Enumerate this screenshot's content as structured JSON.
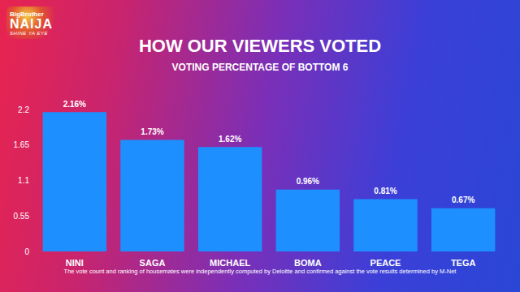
{
  "chart_data": {
    "type": "bar",
    "title": "HOW OUR VIEWERS VOTED",
    "subtitle": "VOTING PERCENTAGE OF BOTTOM 6",
    "logo": [
      "BigBrother",
      "NAIJA",
      "SHINE YA EYE"
    ],
    "annotations": [
      "The vote count and ranking of housemates were independently computed by Deloitte and confirmed against the vote results determined by M-Net"
    ],
    "categories": [
      "NINI",
      "SAGA",
      "MICHAEL",
      "BOMA",
      "PEACE",
      "TEGA"
    ],
    "values": [
      2.16,
      1.73,
      1.62,
      0.96,
      0.81,
      0.67
    ],
    "value_labels": [
      "2.16%",
      "1.73%",
      "1.62%",
      "0.96%",
      "0.81%",
      "0.67%"
    ],
    "color": "#1e8fff",
    "ylim": [
      0,
      2.2
    ],
    "yticks": [
      0,
      0.55,
      1.1,
      1.65,
      2.2
    ],
    "grid": false,
    "data_labels": true
  }
}
